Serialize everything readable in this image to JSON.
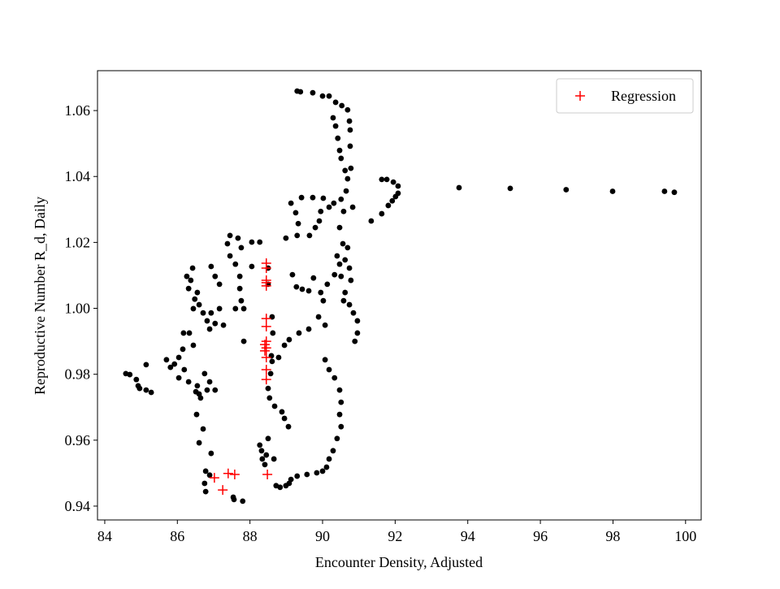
{
  "chart_data": {
    "type": "scatter",
    "x_label": "Encounter Density, Adjusted",
    "y_label": "Reproductive Number R_d, Daily",
    "xlim": [
      83.8,
      100.43
    ],
    "ylim": [
      0.9358,
      1.0721
    ],
    "xticks": [
      84,
      86,
      88,
      90,
      92,
      94,
      96,
      98,
      100
    ],
    "yticks": [
      0.94,
      0.96,
      0.98,
      {
        "value": 1,
        "label": "1.00"
      },
      1.02,
      1.04,
      1.06
    ],
    "grid": false,
    "legend": "upper right",
    "series": [
      {
        "color": "#000000",
        "marker": "dot",
        "x": [
          93.76,
          95.17,
          96.71,
          97.99,
          99.42,
          99.69,
          90.83,
          91.34,
          91.63,
          91.81,
          91.92,
          92.08,
          92.08,
          91.95,
          91.77,
          91.63,
          92.01,
          90.78,
          90.76,
          90.76,
          90.74,
          90.69,
          90.53,
          90.36,
          90.18,
          90.0,
          89.73,
          89.39,
          89.3,
          90.29,
          90.36,
          90.42,
          90.47,
          90.51,
          90.62,
          90.69,
          90.65,
          90.51,
          90.58,
          90.47,
          90.56,
          90.62,
          90.51,
          90.62,
          90.74,
          90.85,
          90.96,
          90.96,
          90.89,
          90.4,
          90.74,
          90.47,
          90.69,
          90.33,
          90.78,
          90.58,
          90.02,
          89.73,
          89.42,
          89.13,
          89.26,
          89.33,
          89.3,
          88.99,
          89.64,
          89.8,
          89.91,
          89.95,
          90.18,
          90.31,
          90.13,
          89.95,
          89.62,
          89.44,
          89.28,
          89.75,
          90.02,
          89.89,
          90.07,
          89.62,
          89.35,
          89.08,
          88.95,
          88.59,
          88.63,
          88.61,
          88.5,
          88.5,
          90.07,
          90.18,
          90.33,
          90.47,
          90.51,
          90.47,
          90.51,
          90.4,
          90.29,
          90.18,
          90.11,
          90.0,
          89.84,
          89.57,
          89.3,
          89.13,
          89.08,
          88.99,
          88.83,
          88.72,
          88.27,
          88.32,
          88.34,
          88.41,
          88.66,
          89.06,
          88.95,
          88.88,
          88.68,
          88.54,
          88.5,
          88.57,
          88.61,
          86.93,
          87.04,
          87.16,
          87.38,
          87.45,
          87.67,
          88.05,
          88.27,
          87.76,
          87.45,
          87.6,
          88.05,
          87.72,
          87.72,
          87.76,
          87.6,
          87.83,
          87.83,
          87.16,
          86.93,
          86.71,
          86.82,
          86.89,
          87.04,
          87.27,
          86.6,
          86.55,
          86.37,
          86.26,
          86.42,
          86.31,
          86.48,
          86.44,
          86.33,
          86.44,
          86.15,
          86.04,
          85.92,
          85.81,
          85.7,
          86.19,
          86.04,
          86.31,
          86.55,
          86.51,
          86.6,
          86.82,
          86.89,
          86.75,
          86.64,
          86.53,
          86.71,
          86.6,
          86.93,
          86.78,
          86.89,
          86.75,
          86.78,
          87.54,
          87.56,
          87.8,
          84.69,
          84.87,
          84.92,
          84.96,
          85.14,
          85.28,
          85.14,
          86.17,
          84.58,
          87.04,
          89.17,
          88.79,
          88.45,
          88.5
        ],
        "values": [
          1.0366,
          1.0364,
          1.036,
          1.0355,
          1.0355,
          1.0352,
          1.0307,
          1.0265,
          1.0287,
          1.0312,
          1.0326,
          1.0349,
          1.0371,
          1.0383,
          1.0391,
          1.0391,
          1.0339,
          1.0425,
          1.0492,
          1.0541,
          1.0568,
          1.0602,
          1.0615,
          1.0625,
          1.0644,
          1.0644,
          1.0654,
          1.0657,
          1.0659,
          1.0578,
          1.0553,
          1.0516,
          1.0479,
          1.0455,
          1.0418,
          1.0393,
          1.0356,
          1.0331,
          1.0294,
          1.0245,
          1.0196,
          1.0147,
          1.0097,
          1.0048,
          1.0011,
          0.9986,
          0.9962,
          0.9925,
          0.99,
          1.0159,
          1.0122,
          1.0134,
          1.0184,
          1.0102,
          1.0085,
          1.0023,
          1.0334,
          1.0336,
          1.0336,
          1.0319,
          1.029,
          1.0257,
          1.0221,
          1.0213,
          1.0221,
          1.0245,
          1.0265,
          1.0294,
          1.0307,
          1.0319,
          1.0073,
          1.0048,
          1.0053,
          1.0058,
          1.0065,
          1.0092,
          1.0023,
          0.9974,
          0.9949,
          0.9937,
          0.9925,
          0.9905,
          0.9888,
          0.9856,
          0.9925,
          0.9974,
          1.0073,
          1.0122,
          0.9844,
          0.9814,
          0.9789,
          0.9752,
          0.9715,
          0.9678,
          0.9641,
          0.9605,
          0.9568,
          0.9543,
          0.9518,
          0.9506,
          0.9501,
          0.9496,
          0.9491,
          0.9481,
          0.9469,
          0.9462,
          0.9457,
          0.9462,
          0.9585,
          0.9568,
          0.9543,
          0.9526,
          0.9543,
          0.9641,
          0.9666,
          0.9686,
          0.9703,
          0.9728,
          0.9757,
          0.9802,
          0.9839,
          1.0127,
          1.0097,
          1.0073,
          1.0196,
          1.0221,
          1.0213,
          1.0201,
          1.0201,
          1.0184,
          1.0159,
          1.0134,
          1.0127,
          1.0097,
          1.006,
          1.0023,
          0.9999,
          0.9999,
          0.99,
          0.9999,
          0.9986,
          0.9986,
          0.9962,
          0.9937,
          0.9954,
          0.9949,
          1.0011,
          1.0048,
          1.0085,
          1.0097,
          1.0122,
          1.006,
          1.0028,
          0.9999,
          0.9925,
          0.9888,
          0.9876,
          0.9851,
          0.9831,
          0.9821,
          0.9844,
          0.9814,
          0.9789,
          0.9777,
          0.9765,
          0.9747,
          0.974,
          0.9752,
          0.9777,
          0.9802,
          0.9728,
          0.9678,
          0.9634,
          0.9592,
          0.956,
          0.9506,
          0.9494,
          0.9469,
          0.9444,
          0.9427,
          0.942,
          0.9415,
          0.9799,
          0.9784,
          0.9765,
          0.9757,
          0.9752,
          0.9745,
          0.9829,
          0.9925,
          0.9802,
          0.9752,
          1.0102,
          0.9851,
          0.9555,
          0.9605
        ]
      },
      {
        "name": "Regression",
        "color": "#ff0000",
        "marker": "plus",
        "x": [
          88.45,
          88.45,
          88.45,
          88.45,
          88.45,
          88.45,
          88.45,
          88.45,
          88.41,
          88.45,
          88.41,
          88.45,
          88.45,
          88.45,
          88.48,
          87.02,
          87.4,
          87.58,
          87.25
        ],
        "values": [
          1.0137,
          1.0122,
          1.0085,
          1.0078,
          1.0068,
          0.9969,
          0.9945,
          0.99,
          0.989,
          0.988,
          0.9871,
          0.9851,
          0.9814,
          0.9784,
          0.9496,
          0.9486,
          0.9499,
          0.9496,
          0.9449
        ]
      }
    ]
  }
}
